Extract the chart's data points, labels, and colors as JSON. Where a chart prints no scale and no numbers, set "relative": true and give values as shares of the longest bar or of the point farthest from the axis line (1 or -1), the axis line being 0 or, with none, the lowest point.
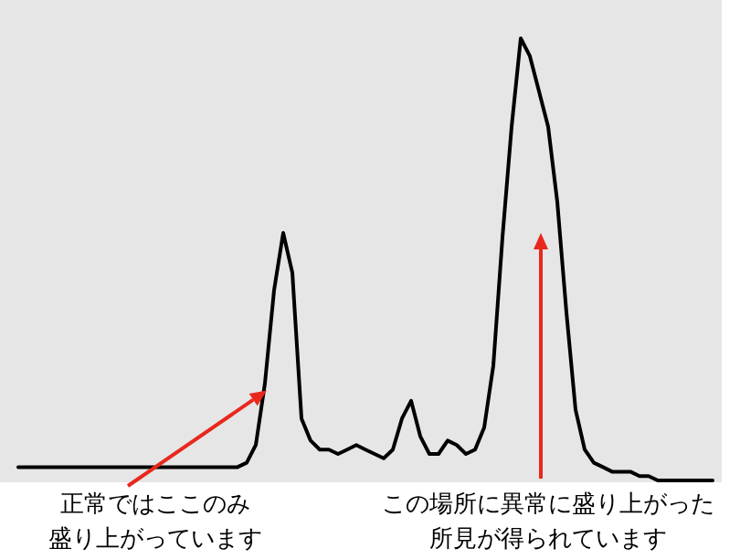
{
  "chart_data": {
    "type": "line",
    "relative": true,
    "color": "#000000",
    "marker": "none",
    "categories": [
      null,
      null,
      null,
      null,
      null,
      null,
      null,
      null,
      null,
      null,
      null,
      null,
      null,
      null,
      null,
      null,
      null,
      null,
      null,
      null,
      null,
      null,
      null,
      null,
      null,
      null,
      null,
      null,
      null,
      null,
      null,
      null,
      null,
      null,
      null,
      null,
      null,
      null,
      null,
      null,
      null,
      null,
      null,
      null,
      null,
      null,
      null,
      null,
      null,
      null,
      null,
      null,
      null,
      null,
      null,
      null,
      null,
      null,
      null,
      null,
      null,
      null,
      null,
      null,
      null,
      null,
      null,
      null,
      null,
      null,
      null,
      null,
      null,
      null,
      null,
      null,
      null
    ],
    "values": [
      0.03,
      0.03,
      0.03,
      0.03,
      0.03,
      0.03,
      0.03,
      0.03,
      0.03,
      0.03,
      0.03,
      0.03,
      0.03,
      0.03,
      0.03,
      0.03,
      0.03,
      0.03,
      0.03,
      0.03,
      0.03,
      0.03,
      0.03,
      0.03,
      0.03,
      0.04,
      0.08,
      0.22,
      0.43,
      0.56,
      0.47,
      0.14,
      0.09,
      0.07,
      0.07,
      0.06,
      0.07,
      0.08,
      0.07,
      0.06,
      0.05,
      0.07,
      0.14,
      0.18,
      0.1,
      0.06,
      0.06,
      0.09,
      0.08,
      0.06,
      0.07,
      0.12,
      0.26,
      0.55,
      0.8,
      1.0,
      0.96,
      0.88,
      0.8,
      0.63,
      0.38,
      0.16,
      0.07,
      0.04,
      0.03,
      0.02,
      0.02,
      0.02,
      0.01,
      0.01,
      0,
      0,
      0,
      0,
      0,
      0,
      0
    ],
    "annotations": [
      "正常ではここのみ盛り上がっています",
      "この場所に異常に盛り上がった所見が得られています"
    ]
  }
}
